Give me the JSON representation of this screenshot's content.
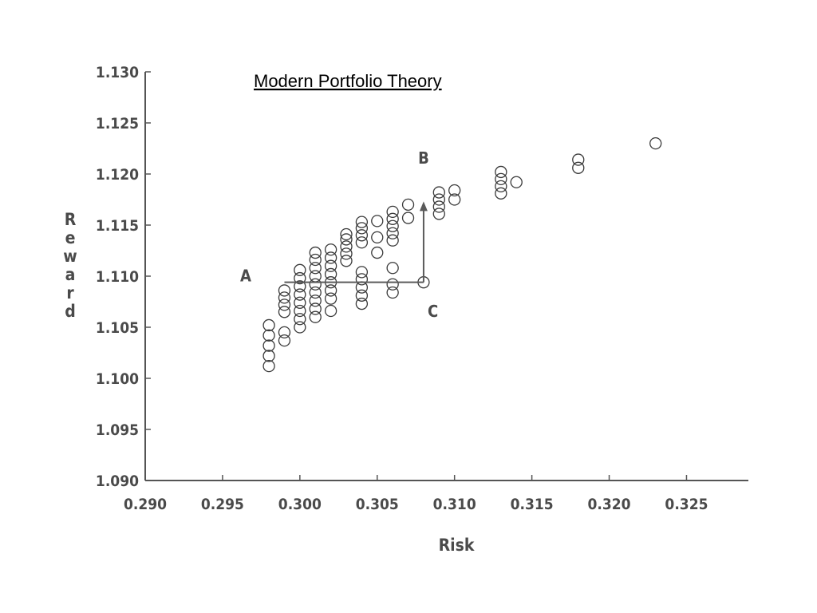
{
  "chart_data": {
    "type": "scatter",
    "title": "Modern Portfolio Theory",
    "xlabel": "Risk",
    "ylabel": "Reward",
    "xlim": [
      0.29,
      0.329
    ],
    "ylim": [
      1.09,
      1.13
    ],
    "x_ticks": [
      "0.290",
      "0.295",
      "0.300",
      "0.305",
      "0.310",
      "0.315",
      "0.320",
      "0.325"
    ],
    "y_ticks": [
      "1.090",
      "1.095",
      "1.100",
      "1.105",
      "1.110",
      "1.115",
      "1.120",
      "1.125",
      "1.130"
    ],
    "grid": false,
    "legend": "none",
    "series": [
      {
        "points": [
          [
            0.298,
            1.1012
          ],
          [
            0.298,
            1.1022
          ],
          [
            0.298,
            1.1032
          ],
          [
            0.298,
            1.1042
          ],
          [
            0.298,
            1.1052
          ],
          [
            0.299,
            1.1037
          ],
          [
            0.299,
            1.1045
          ],
          [
            0.299,
            1.1065
          ],
          [
            0.299,
            1.1072
          ],
          [
            0.299,
            1.1079
          ],
          [
            0.299,
            1.1086
          ],
          [
            0.3,
            1.105
          ],
          [
            0.3,
            1.1058
          ],
          [
            0.3,
            1.1066
          ],
          [
            0.3,
            1.1074
          ],
          [
            0.3,
            1.1082
          ],
          [
            0.3,
            1.109
          ],
          [
            0.3,
            1.1098
          ],
          [
            0.3,
            1.1106
          ],
          [
            0.301,
            1.106
          ],
          [
            0.301,
            1.1068
          ],
          [
            0.301,
            1.1076
          ],
          [
            0.301,
            1.1084
          ],
          [
            0.301,
            1.1092
          ],
          [
            0.301,
            1.11
          ],
          [
            0.301,
            1.1108
          ],
          [
            0.301,
            1.1116
          ],
          [
            0.301,
            1.1123
          ],
          [
            0.302,
            1.1066
          ],
          [
            0.302,
            1.1078
          ],
          [
            0.302,
            1.1086
          ],
          [
            0.302,
            1.1094
          ],
          [
            0.302,
            1.1102
          ],
          [
            0.302,
            1.111
          ],
          [
            0.302,
            1.1118
          ],
          [
            0.302,
            1.1126
          ],
          [
            0.303,
            1.1115
          ],
          [
            0.303,
            1.1122
          ],
          [
            0.303,
            1.1129
          ],
          [
            0.303,
            1.1136
          ],
          [
            0.303,
            1.1141
          ],
          [
            0.304,
            1.1073
          ],
          [
            0.304,
            1.1081
          ],
          [
            0.304,
            1.1089
          ],
          [
            0.304,
            1.1097
          ],
          [
            0.304,
            1.1104
          ],
          [
            0.304,
            1.1133
          ],
          [
            0.304,
            1.114
          ],
          [
            0.304,
            1.1147
          ],
          [
            0.304,
            1.1153
          ],
          [
            0.305,
            1.1123
          ],
          [
            0.305,
            1.1138
          ],
          [
            0.305,
            1.1154
          ],
          [
            0.306,
            1.1084
          ],
          [
            0.306,
            1.1092
          ],
          [
            0.306,
            1.1108
          ],
          [
            0.306,
            1.1135
          ],
          [
            0.306,
            1.1142
          ],
          [
            0.306,
            1.1149
          ],
          [
            0.306,
            1.1156
          ],
          [
            0.306,
            1.1163
          ],
          [
            0.307,
            1.1157
          ],
          [
            0.307,
            1.117
          ],
          [
            0.308,
            1.1094
          ],
          [
            0.309,
            1.1161
          ],
          [
            0.309,
            1.1168
          ],
          [
            0.309,
            1.1175
          ],
          [
            0.309,
            1.1182
          ],
          [
            0.31,
            1.1175
          ],
          [
            0.31,
            1.1184
          ],
          [
            0.313,
            1.1181
          ],
          [
            0.313,
            1.1188
          ],
          [
            0.313,
            1.1195
          ],
          [
            0.313,
            1.1202
          ],
          [
            0.314,
            1.1192
          ],
          [
            0.318,
            1.1206
          ],
          [
            0.318,
            1.1214
          ],
          [
            0.323,
            1.123
          ]
        ]
      }
    ],
    "annotations": [
      {
        "label": "A",
        "x": 0.2965,
        "y": 1.1095
      },
      {
        "label": "B",
        "x": 0.308,
        "y": 1.121
      },
      {
        "label": "C",
        "x": 0.3086,
        "y": 1.106
      }
    ],
    "arrow": {
      "from": [
        0.299,
        1.1094
      ],
      "corner": [
        0.308,
        1.1094
      ],
      "to": [
        0.308,
        1.117
      ]
    }
  }
}
